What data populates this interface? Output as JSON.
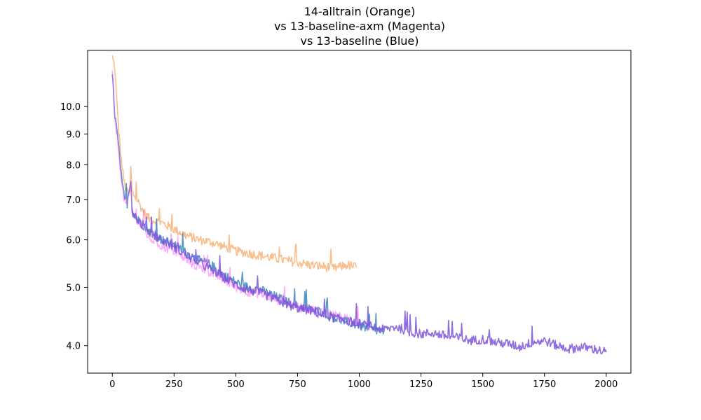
{
  "chart_data": {
    "type": "line",
    "title_lines": [
      "14-alltrain (Orange)",
      "vs 13-baseline-axm (Magenta)",
      "vs 13-baseline (Blue)"
    ],
    "xlabel": "",
    "ylabel": "",
    "xlim": [
      -100,
      2100
    ],
    "ylim": [
      3.6,
      12.4
    ],
    "yscale": "log",
    "grid": false,
    "x_ticks": [
      0,
      250,
      500,
      750,
      1000,
      1250,
      1500,
      1750,
      2000
    ],
    "x_tick_labels": [
      "0",
      "250",
      "500",
      "750",
      "1000",
      "1250",
      "1500",
      "1750",
      "2000"
    ],
    "y_ticks": [
      4.0,
      5.0,
      6.0,
      7.0,
      8.0,
      9.0,
      10.0
    ],
    "y_tick_labels": [
      "4.0",
      "5.0",
      "6.0",
      "7.0",
      "8.0",
      "9.0",
      "10.0"
    ],
    "series": [
      {
        "color": "#f7a35c",
        "opacity": 0.7,
        "x": [
          0,
          10,
          20,
          30,
          40,
          50,
          60,
          70,
          75,
          80,
          100,
          125,
          150,
          175,
          200,
          250,
          300,
          350,
          400,
          450,
          500,
          550,
          600,
          650,
          700,
          750,
          800,
          850,
          900,
          950,
          990
        ],
        "values": [
          12.1,
          11.6,
          9.9,
          8.7,
          7.9,
          7.4,
          7.2,
          7.1,
          7.9,
          7.2,
          7.0,
          6.7,
          6.5,
          6.45,
          6.4,
          6.25,
          6.1,
          6.0,
          5.95,
          5.85,
          5.75,
          5.7,
          5.65,
          5.6,
          5.55,
          5.5,
          5.45,
          5.42,
          5.38,
          5.45,
          5.4
        ]
      },
      {
        "color": "#1f77b4",
        "opacity": 0.75,
        "x": [
          0,
          10,
          20,
          30,
          40,
          50,
          60,
          75,
          80,
          100,
          150,
          200,
          250,
          300,
          350,
          400,
          450,
          500,
          550,
          600,
          650,
          700,
          750,
          800,
          850,
          900,
          950,
          1000,
          1050,
          1100
        ],
        "values": [
          11.3,
          9.7,
          9.0,
          8.2,
          7.4,
          7.0,
          6.9,
          7.6,
          6.7,
          6.5,
          6.2,
          6.0,
          5.9,
          5.7,
          5.55,
          5.45,
          5.25,
          5.1,
          5.0,
          4.95,
          4.85,
          4.75,
          4.65,
          4.6,
          4.55,
          4.45,
          4.38,
          4.32,
          4.25,
          4.22
        ]
      },
      {
        "color": "#ff44ff",
        "opacity": 0.45,
        "x": [
          0,
          10,
          20,
          30,
          40,
          50,
          60,
          75,
          80,
          100,
          150,
          200,
          250,
          300,
          350,
          400,
          450,
          500,
          550,
          600,
          650,
          700,
          750,
          800,
          850,
          900,
          950,
          1000
        ],
        "values": [
          11.3,
          9.6,
          8.9,
          8.1,
          7.3,
          6.95,
          6.85,
          7.5,
          6.65,
          6.45,
          6.05,
          5.85,
          5.75,
          5.55,
          5.4,
          5.3,
          5.15,
          5.0,
          4.92,
          4.88,
          4.8,
          4.72,
          4.65,
          4.6,
          4.55,
          4.5,
          4.42,
          4.38
        ]
      },
      {
        "color": "#7b52d9",
        "opacity": 0.85,
        "x": [
          80,
          100,
          150,
          200,
          250,
          300,
          350,
          400,
          450,
          500,
          550,
          600,
          650,
          700,
          750,
          800,
          850,
          900,
          950,
          1000,
          1050,
          1100,
          1150,
          1200,
          1250,
          1300,
          1350,
          1400,
          1450,
          1500,
          1550,
          1600,
          1650,
          1700,
          1750,
          1800,
          1850,
          1900,
          1950,
          2000
        ],
        "values": [
          6.75,
          6.5,
          6.2,
          6.0,
          5.85,
          5.65,
          5.5,
          5.35,
          5.2,
          5.05,
          4.95,
          4.9,
          4.8,
          4.7,
          4.62,
          4.58,
          4.5,
          4.45,
          4.4,
          4.35,
          4.3,
          4.25,
          4.3,
          4.22,
          4.18,
          4.2,
          4.15,
          4.12,
          4.08,
          4.1,
          4.05,
          4.03,
          3.98,
          4.05,
          4.08,
          4.0,
          3.95,
          3.98,
          3.95,
          3.9
        ]
      }
    ]
  }
}
